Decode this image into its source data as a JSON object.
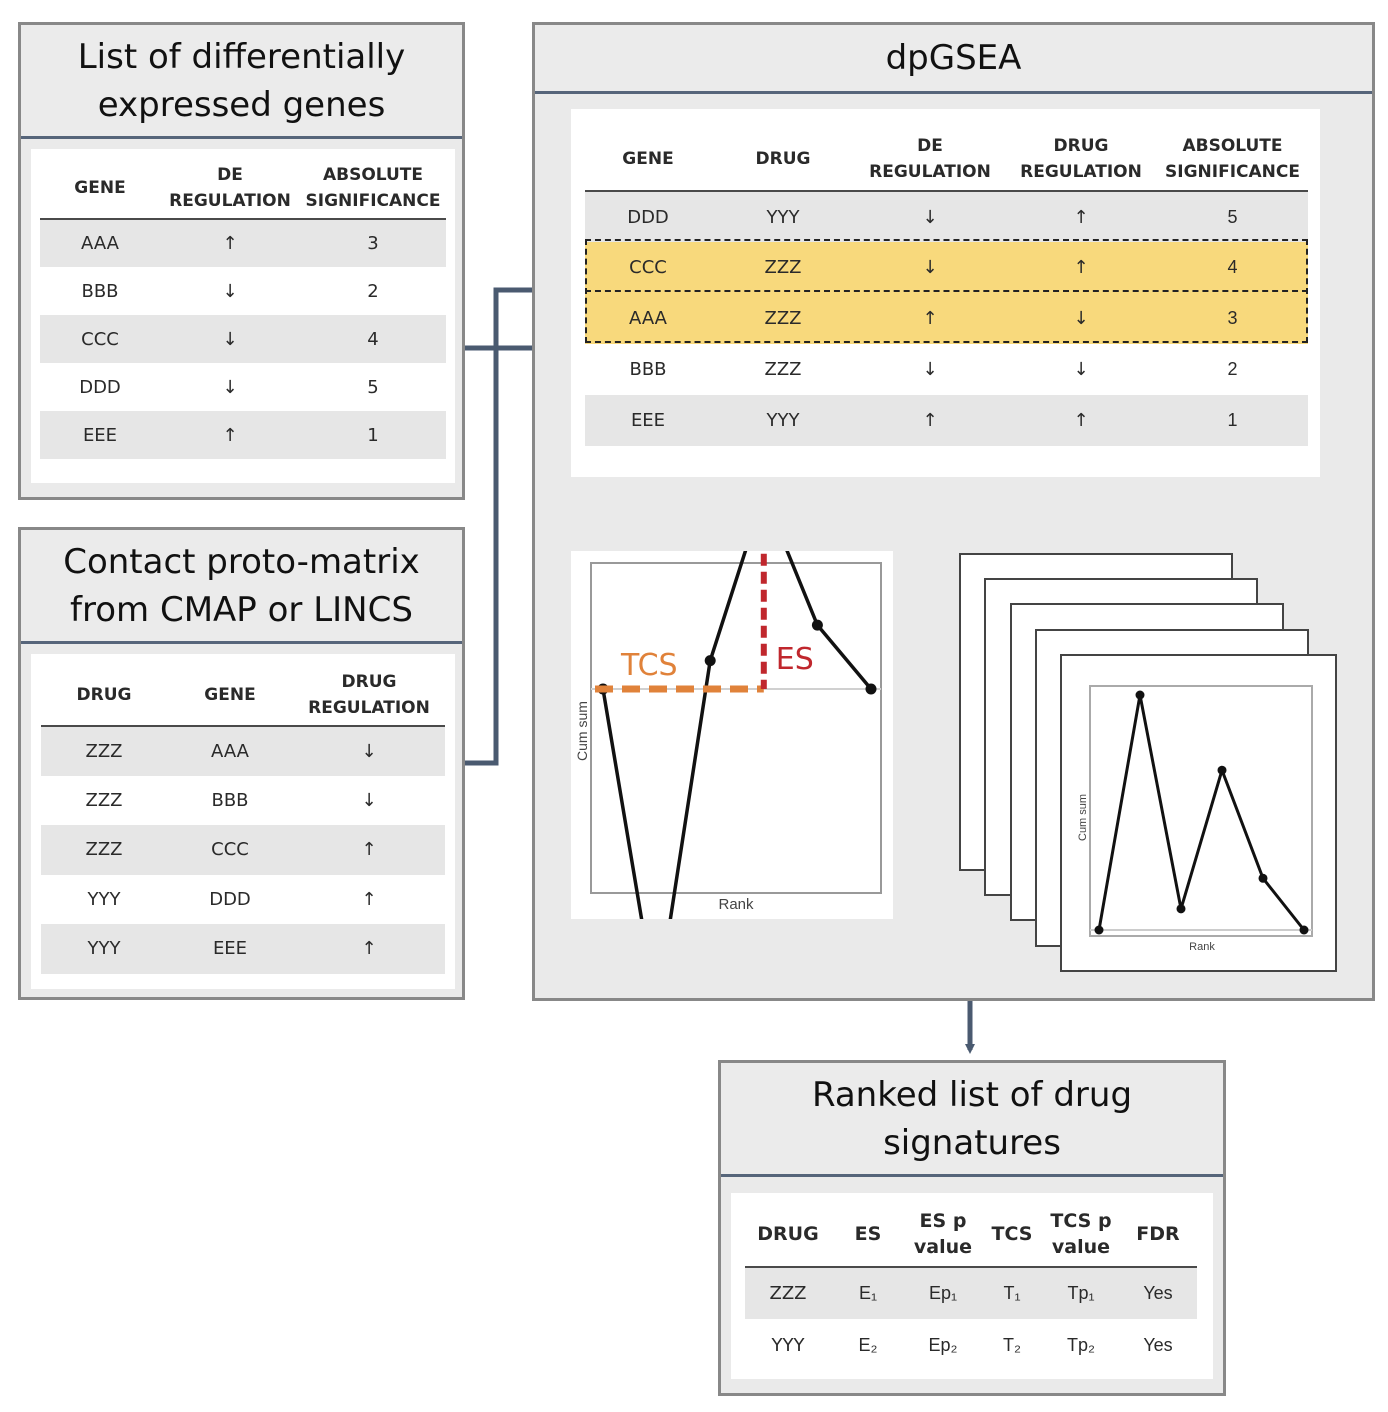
{
  "de_genes": {
    "title": "List of differentially\nexpressed genes",
    "headers": [
      "GENE",
      "DE\nREGULATION",
      "ABSOLUTE\nSIGNIFICANCE"
    ],
    "rows": [
      [
        "AAA",
        "↑",
        "3"
      ],
      [
        "BBB",
        "↓",
        "2"
      ],
      [
        "CCC",
        "↓",
        "4"
      ],
      [
        "DDD",
        "↓",
        "5"
      ],
      [
        "EEE",
        "↑",
        "1"
      ]
    ]
  },
  "proto_matrix": {
    "title": "Contact proto-matrix\nfrom CMAP or LINCS",
    "headers": [
      "DRUG",
      "GENE",
      "DRUG\nREGULATION"
    ],
    "rows": [
      [
        "ZZZ",
        "AAA",
        "↓"
      ],
      [
        "ZZZ",
        "BBB",
        "↓"
      ],
      [
        "ZZZ",
        "CCC",
        "↑"
      ],
      [
        "YYY",
        "DDD",
        "↑"
      ],
      [
        "YYY",
        "EEE",
        "↑"
      ]
    ]
  },
  "dpgsea": {
    "title": "dpGSEA",
    "headers": [
      "GENE",
      "DRUG",
      "DE\nREGULATION",
      "DRUG\nREGULATION",
      "ABSOLUTE\nSIGNIFICANCE"
    ],
    "rows": [
      [
        "DDD",
        "YYY",
        "↓",
        "↑",
        "5"
      ],
      [
        "CCC",
        "ZZZ",
        "↓",
        "↑",
        "4"
      ],
      [
        "AAA",
        "ZZZ",
        "↑",
        "↓",
        "3"
      ],
      [
        "BBB",
        "ZZZ",
        "↓",
        "↓",
        "2"
      ],
      [
        "EEE",
        "YYY",
        "↑",
        "↑",
        "1"
      ]
    ],
    "plot_main": {
      "tcs_label": "TCS",
      "es_label": "ES",
      "ylabel": "Cum sum",
      "xlabel": "Rank",
      "points": [
        0,
        -0.9,
        0.08,
        0.55,
        0.18,
        0
      ]
    },
    "plot_stack": {
      "ylabel": "Cum sum",
      "xlabel": "Rank",
      "points": [
        0,
        1.0,
        0.09,
        0.68,
        0.22,
        0
      ]
    }
  },
  "ranked": {
    "title": "Ranked list of drug\nsignatures",
    "headers": [
      "DRUG",
      "ES",
      "ES p\nvalue",
      "TCS",
      "TCS p\nvalue",
      "FDR"
    ],
    "rows": [
      [
        "ZZZ",
        "E₁",
        "Ep₁",
        "T₁",
        "Tp₁",
        "Yes"
      ],
      [
        "YYY",
        "E₂",
        "Ep₂",
        "T₂",
        "Tp₂",
        "Yes"
      ]
    ]
  },
  "colors": {
    "highlight": "#f8d97c",
    "tcs": "#e0823a",
    "es": "#c0272d",
    "connector": "#4a5a70"
  }
}
